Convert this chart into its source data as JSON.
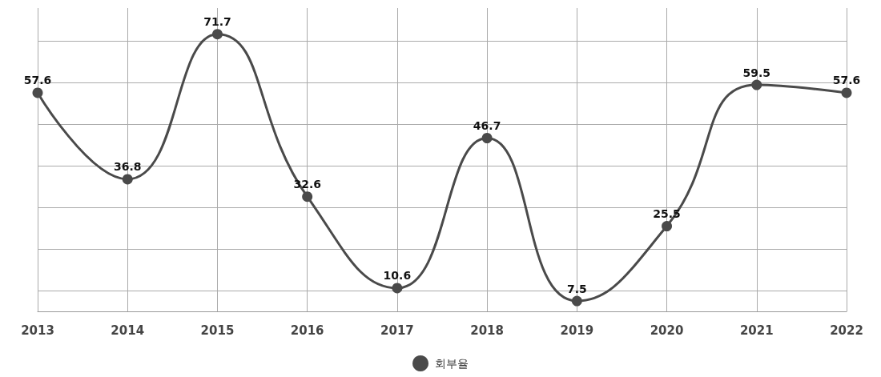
{
  "chart_data": {
    "type": "line",
    "categories": [
      "2013",
      "2014",
      "2015",
      "2016",
      "2017",
      "2018",
      "2019",
      "2020",
      "2021",
      "2022"
    ],
    "series": [
      {
        "name": "회부율",
        "color": "#4a4a4a",
        "values": [
          57.6,
          36.8,
          71.7,
          32.6,
          10.6,
          46.7,
          7.5,
          25.5,
          59.5,
          57.6
        ]
      }
    ],
    "ylim": [
      5,
      78
    ],
    "yticks": [
      {
        "value": 10,
        "label": null
      },
      {
        "value": 20,
        "label": null
      },
      {
        "value": 30,
        "label": null
      },
      {
        "value": 40,
        "label": null
      },
      {
        "value": 50,
        "label": null
      },
      {
        "value": 60,
        "label": null
      },
      {
        "value": 70,
        "label": null
      }
    ],
    "tick_labels": "x",
    "grid": true,
    "legend": "bottom",
    "marker": "circle",
    "line_style": "solid",
    "data_labels": true
  }
}
